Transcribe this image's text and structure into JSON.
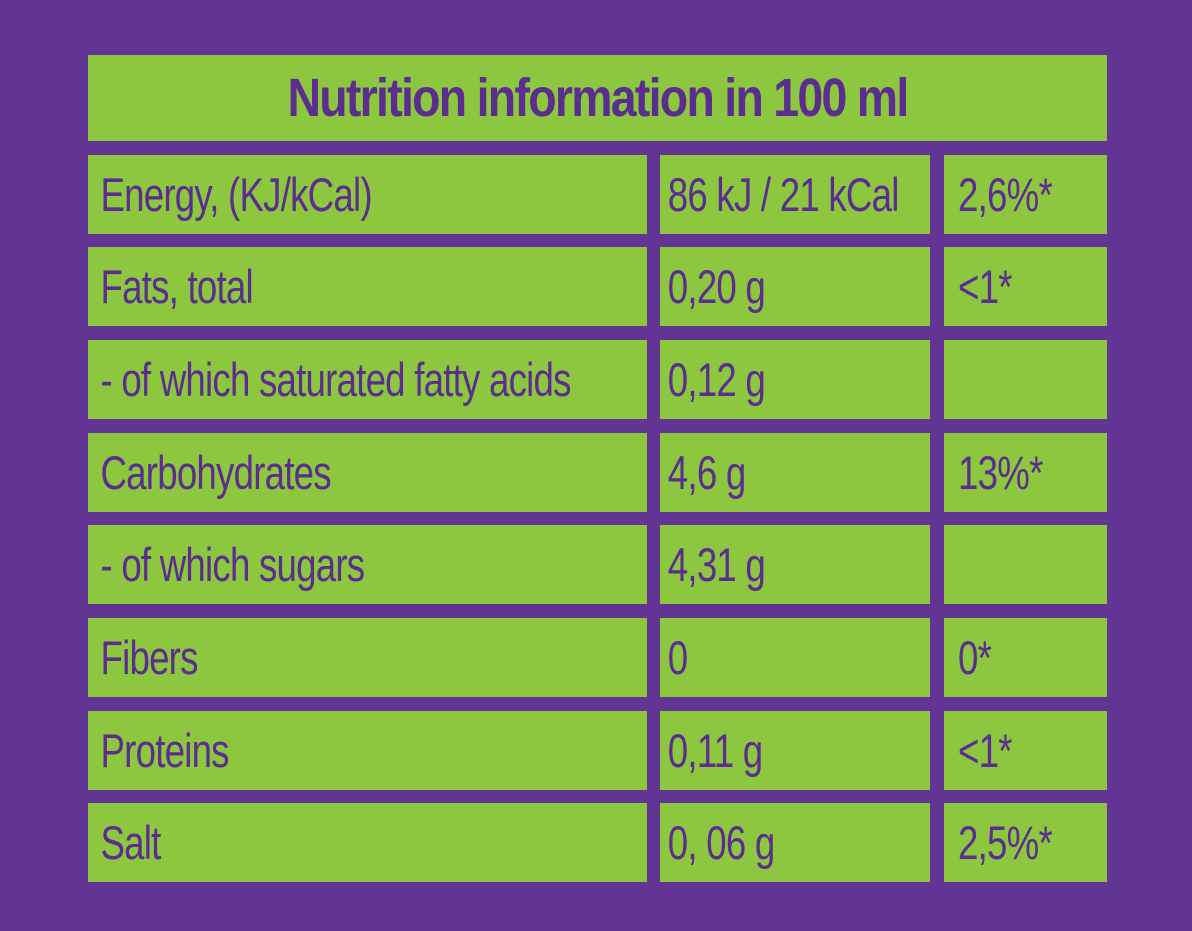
{
  "title": "Nutrition information in 100 ml",
  "rows": [
    {
      "name": "Energy, (KJ/kCal)",
      "value": "86 kJ / 21 kCal",
      "percent": "2,6%*"
    },
    {
      "name": "Fats, total",
      "value": "0,20 g",
      "percent": "<1*"
    },
    {
      "name": "- of which saturated fatty acids",
      "value": "0,12 g",
      "percent": ""
    },
    {
      "name": "Carbohydrates",
      "value": "4,6 g",
      "percent": "13%*"
    },
    {
      "name": "- of which sugars",
      "value": "4,31 g",
      "percent": ""
    },
    {
      "name": "Fibers",
      "value": "0",
      "percent": "0*"
    },
    {
      "name": "Proteins",
      "value": "0,11 g",
      "percent": "<1*"
    },
    {
      "name": "Salt",
      "value": "0, 06 g",
      "percent": "2,5%*"
    }
  ],
  "colors": {
    "background": "#623594",
    "cell": "#8dc63f",
    "text": "#5b2d8e"
  }
}
